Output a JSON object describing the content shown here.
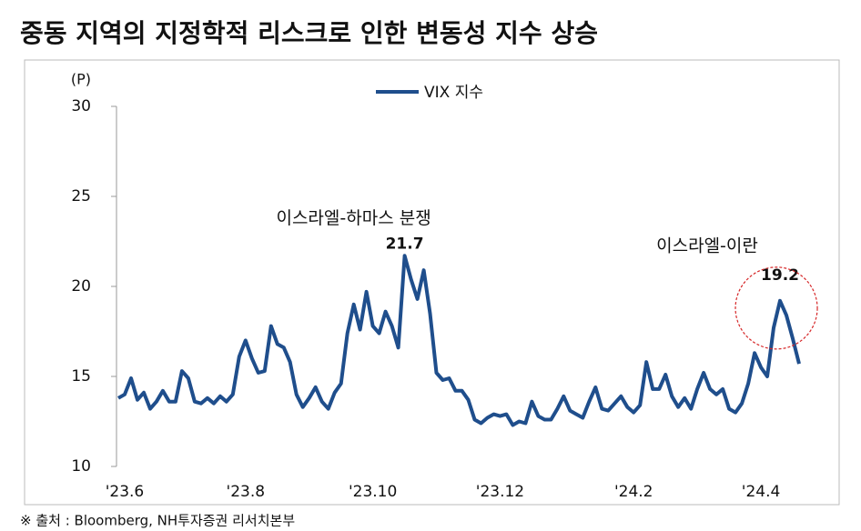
{
  "chart_data": {
    "type": "line",
    "title": "중동 지역의 지정학적 리스크로 인한 변동성 지수 상승",
    "y_unit": "(P)",
    "source": "※ 출처 : Bloomberg, NH투자증권 리서치본부",
    "categories": [
      null,
      "'23.6",
      null,
      null,
      null,
      null,
      null,
      null,
      null,
      null,
      null,
      null,
      null,
      null,
      null,
      null,
      null,
      null,
      null,
      null,
      "'23.8",
      null,
      null,
      null,
      null,
      null,
      null,
      null,
      null,
      null,
      null,
      null,
      null,
      null,
      null,
      null,
      null,
      null,
      null,
      null,
      "'23.10",
      null,
      null,
      null,
      null,
      null,
      null,
      null,
      null,
      null,
      null,
      null,
      null,
      null,
      null,
      null,
      null,
      null,
      null,
      null,
      "'23.12",
      null,
      null,
      null,
      null,
      null,
      null,
      null,
      null,
      null,
      null,
      null,
      null,
      null,
      null,
      null,
      null,
      null,
      null,
      null,
      null,
      "'24.2",
      null,
      null,
      null,
      null,
      null,
      null,
      null,
      null,
      null,
      null,
      null,
      null,
      null,
      null,
      null,
      null,
      null,
      null,
      null,
      "'24.4",
      null,
      null,
      null,
      null,
      null,
      null
    ],
    "series": [
      {
        "name": "VIX 지수",
        "color": "#1f4e8c",
        "values": [
          13.8,
          14.0,
          14.9,
          13.7,
          14.1,
          13.2,
          13.6,
          14.2,
          13.6,
          13.6,
          15.3,
          14.9,
          13.6,
          13.5,
          13.8,
          13.5,
          13.9,
          13.6,
          14.0,
          16.1,
          17.0,
          16.0,
          15.2,
          15.3,
          17.8,
          16.8,
          16.6,
          15.8,
          14.0,
          13.3,
          13.8,
          14.4,
          13.6,
          13.2,
          14.1,
          14.6,
          17.4,
          19.0,
          17.6,
          19.7,
          17.8,
          17.4,
          18.6,
          17.8,
          16.6,
          21.7,
          20.4,
          19.3,
          20.9,
          18.5,
          15.2,
          14.8,
          14.9,
          14.2,
          14.2,
          13.7,
          12.6,
          12.4,
          12.7,
          12.9,
          12.8,
          12.9,
          12.3,
          12.5,
          12.4,
          13.6,
          12.8,
          12.6,
          12.6,
          13.2,
          13.9,
          13.1,
          12.9,
          12.7,
          13.6,
          14.4,
          13.2,
          13.1,
          13.5,
          13.9,
          13.3,
          13.0,
          13.4,
          15.8,
          14.3,
          14.3,
          15.1,
          13.9,
          13.3,
          13.8,
          13.2,
          14.3,
          15.2,
          14.3,
          14.0,
          14.3,
          13.2,
          13.0,
          13.5,
          14.6,
          16.3,
          15.5,
          15.0,
          17.7,
          19.2,
          18.4,
          17.1,
          15.7
        ]
      }
    ],
    "ylim": [
      10,
      30
    ],
    "yticks": [
      10,
      15,
      20,
      25,
      30
    ],
    "annotations": [
      {
        "text": "이스라엘-하마스 분쟁",
        "index": 45
      },
      {
        "text": "이스라엘-이란",
        "index": 104
      }
    ],
    "legend": "top"
  }
}
